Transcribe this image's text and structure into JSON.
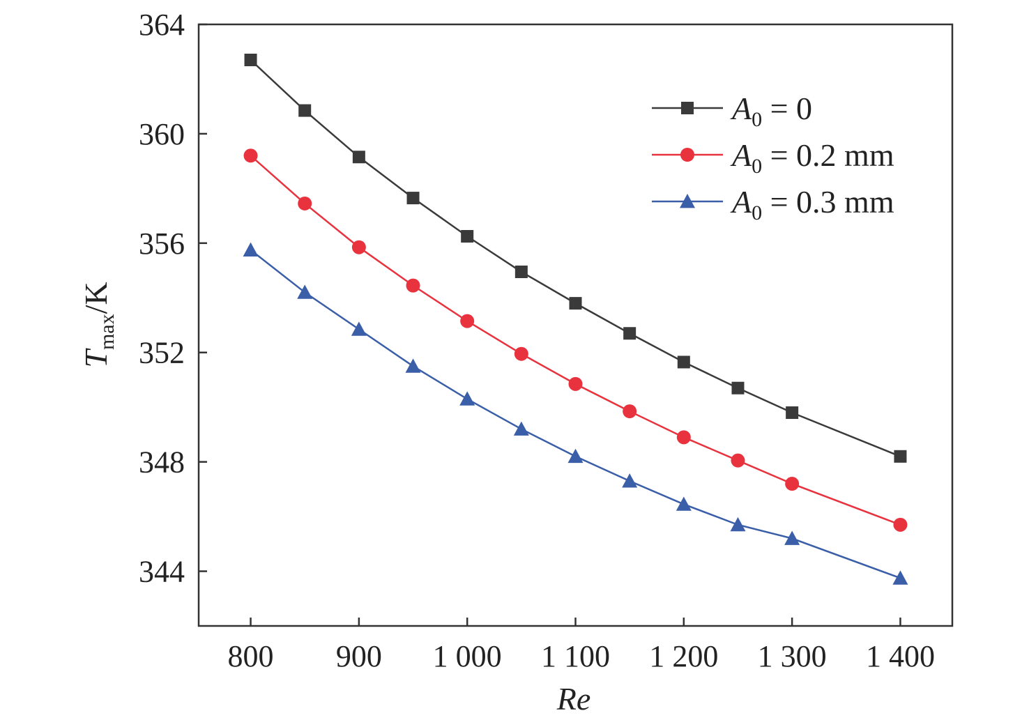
{
  "chart_data": {
    "type": "line",
    "xlabel": "Re",
    "ylabel": {
      "symbol": "T",
      "subscript": "max",
      "unit": "/K"
    },
    "x_tick_labels": [
      "800",
      "900",
      "1 000",
      "1 100",
      "1 200",
      "1 300",
      "1 400"
    ],
    "x_ticks": [
      800,
      900,
      1000,
      1100,
      1200,
      1300,
      1400
    ],
    "y_tick_labels": [
      "344",
      "348",
      "352",
      "356",
      "360",
      "364"
    ],
    "y_ticks": [
      344,
      348,
      352,
      356,
      360,
      364
    ],
    "xlim": [
      752,
      1448
    ],
    "ylim": [
      342,
      364
    ],
    "grid": false,
    "legend_position": "top-right",
    "x": [
      800,
      850,
      900,
      950,
      1000,
      1050,
      1100,
      1150,
      1200,
      1250,
      1300,
      1400
    ],
    "series": [
      {
        "name": "A0 = 0",
        "label_symbol": "A",
        "label_subscript": "0",
        "label_rest": " = 0",
        "marker": "square",
        "color": "#3a3a3a",
        "values": [
          362.7,
          360.85,
          359.15,
          357.65,
          356.25,
          354.95,
          353.8,
          352.7,
          351.65,
          350.7,
          349.8,
          348.2
        ]
      },
      {
        "name": "A0 = 0.2 mm",
        "label_symbol": "A",
        "label_subscript": "0",
        "label_rest": " = 0.2 mm",
        "marker": "circle",
        "color": "#e8333f",
        "values": [
          359.2,
          357.45,
          355.85,
          354.45,
          353.15,
          351.95,
          350.85,
          349.85,
          348.9,
          348.05,
          347.2,
          345.7
        ]
      },
      {
        "name": "A0 = 0.3 mm",
        "label_symbol": "A",
        "label_subscript": "0",
        "label_rest": " = 0.3 mm",
        "marker": "triangle",
        "color": "#3a5ea8",
        "values": [
          355.75,
          354.2,
          352.85,
          351.5,
          350.3,
          349.2,
          348.2,
          347.3,
          346.45,
          345.7,
          345.2,
          343.75
        ]
      }
    ]
  }
}
